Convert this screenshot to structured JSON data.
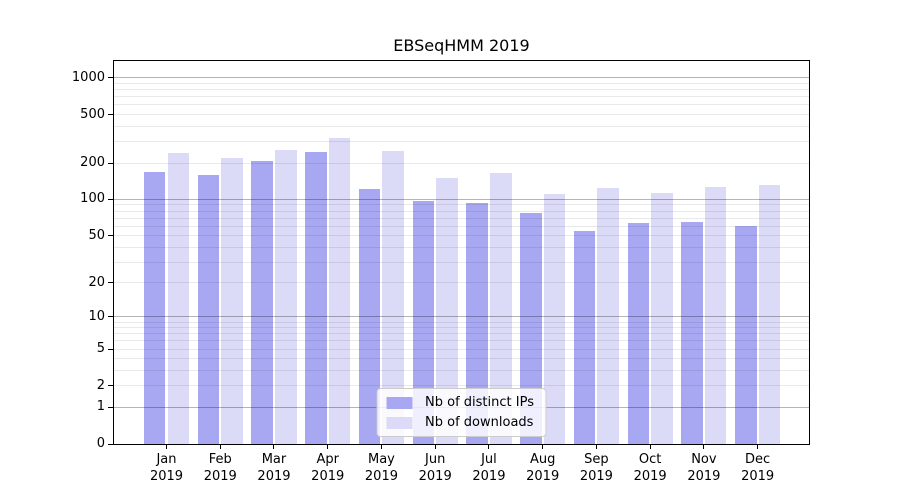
{
  "chart_data": {
    "type": "bar",
    "title": "EBSeqHMM 2019",
    "xlabel": "",
    "ylabel": "",
    "categories": [
      "Jan",
      "Feb",
      "Mar",
      "Apr",
      "May",
      "Jun",
      "Jul",
      "Aug",
      "Sep",
      "Oct",
      "Nov",
      "Dec"
    ],
    "category_year": "2019",
    "series": [
      {
        "name": "Nb of distinct IPs",
        "color": "#a8a8f2",
        "values": [
          170,
          159,
          206,
          245,
          122,
          98,
          93,
          77,
          55,
          64,
          65,
          60
        ]
      },
      {
        "name": "Nb of downloads",
        "color": "#dbdbf8",
        "values": [
          240,
          219,
          256,
          319,
          250,
          150,
          166,
          110,
          124,
          114,
          127,
          133
        ]
      }
    ],
    "y_axis": {
      "scale": "log1p",
      "tick_values": [
        0,
        1,
        2,
        5,
        10,
        20,
        50,
        100,
        200,
        500,
        1000
      ],
      "major_grid_values": [
        1,
        10,
        100,
        1000
      ],
      "minor_grid_values": [
        2,
        3,
        4,
        5,
        6,
        7,
        8,
        9,
        20,
        30,
        40,
        50,
        60,
        70,
        80,
        90,
        200,
        300,
        400,
        500,
        600,
        700,
        800,
        900
      ],
      "top_value": 1430
    },
    "legend": {
      "position": "lower center"
    },
    "colors": {
      "major_grid": "rgba(0,0,0,0.29)",
      "minor_grid": "rgba(0,0,0,0.085)",
      "axis": "#000000",
      "background": "#ffffff"
    }
  }
}
